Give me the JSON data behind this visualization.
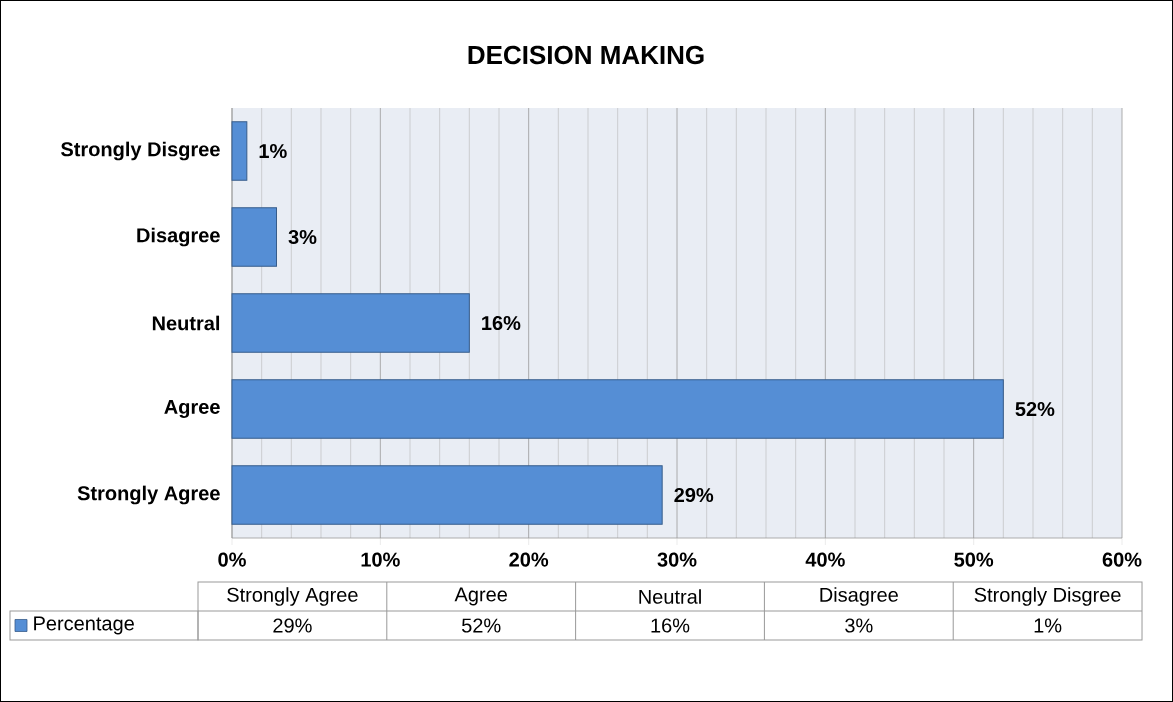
{
  "chart_data": {
    "type": "bar",
    "orientation": "horizontal",
    "title": "DECISION MAKING",
    "categories": [
      "Strongly Disgree",
      "Disagree",
      "Neutral",
      "Agree",
      "Strongly Agree"
    ],
    "series": [
      {
        "name": "Percentage",
        "color": "#558ed5",
        "values": [
          1,
          3,
          16,
          52,
          29
        ],
        "value_labels": [
          "1%",
          "3%",
          "16%",
          "52%",
          "29%"
        ]
      }
    ],
    "xlim": [
      0,
      60
    ],
    "xticks": [
      {
        "value": 0,
        "label": "0%"
      },
      {
        "value": 10,
        "label": "10%"
      },
      {
        "value": 20,
        "label": "20%"
      },
      {
        "value": 30,
        "label": "30%"
      },
      {
        "value": 40,
        "label": "40%"
      },
      {
        "value": 50,
        "label": "50%"
      },
      {
        "value": 60,
        "label": "60%"
      }
    ],
    "grid": "x",
    "legend": "bottom"
  }
}
